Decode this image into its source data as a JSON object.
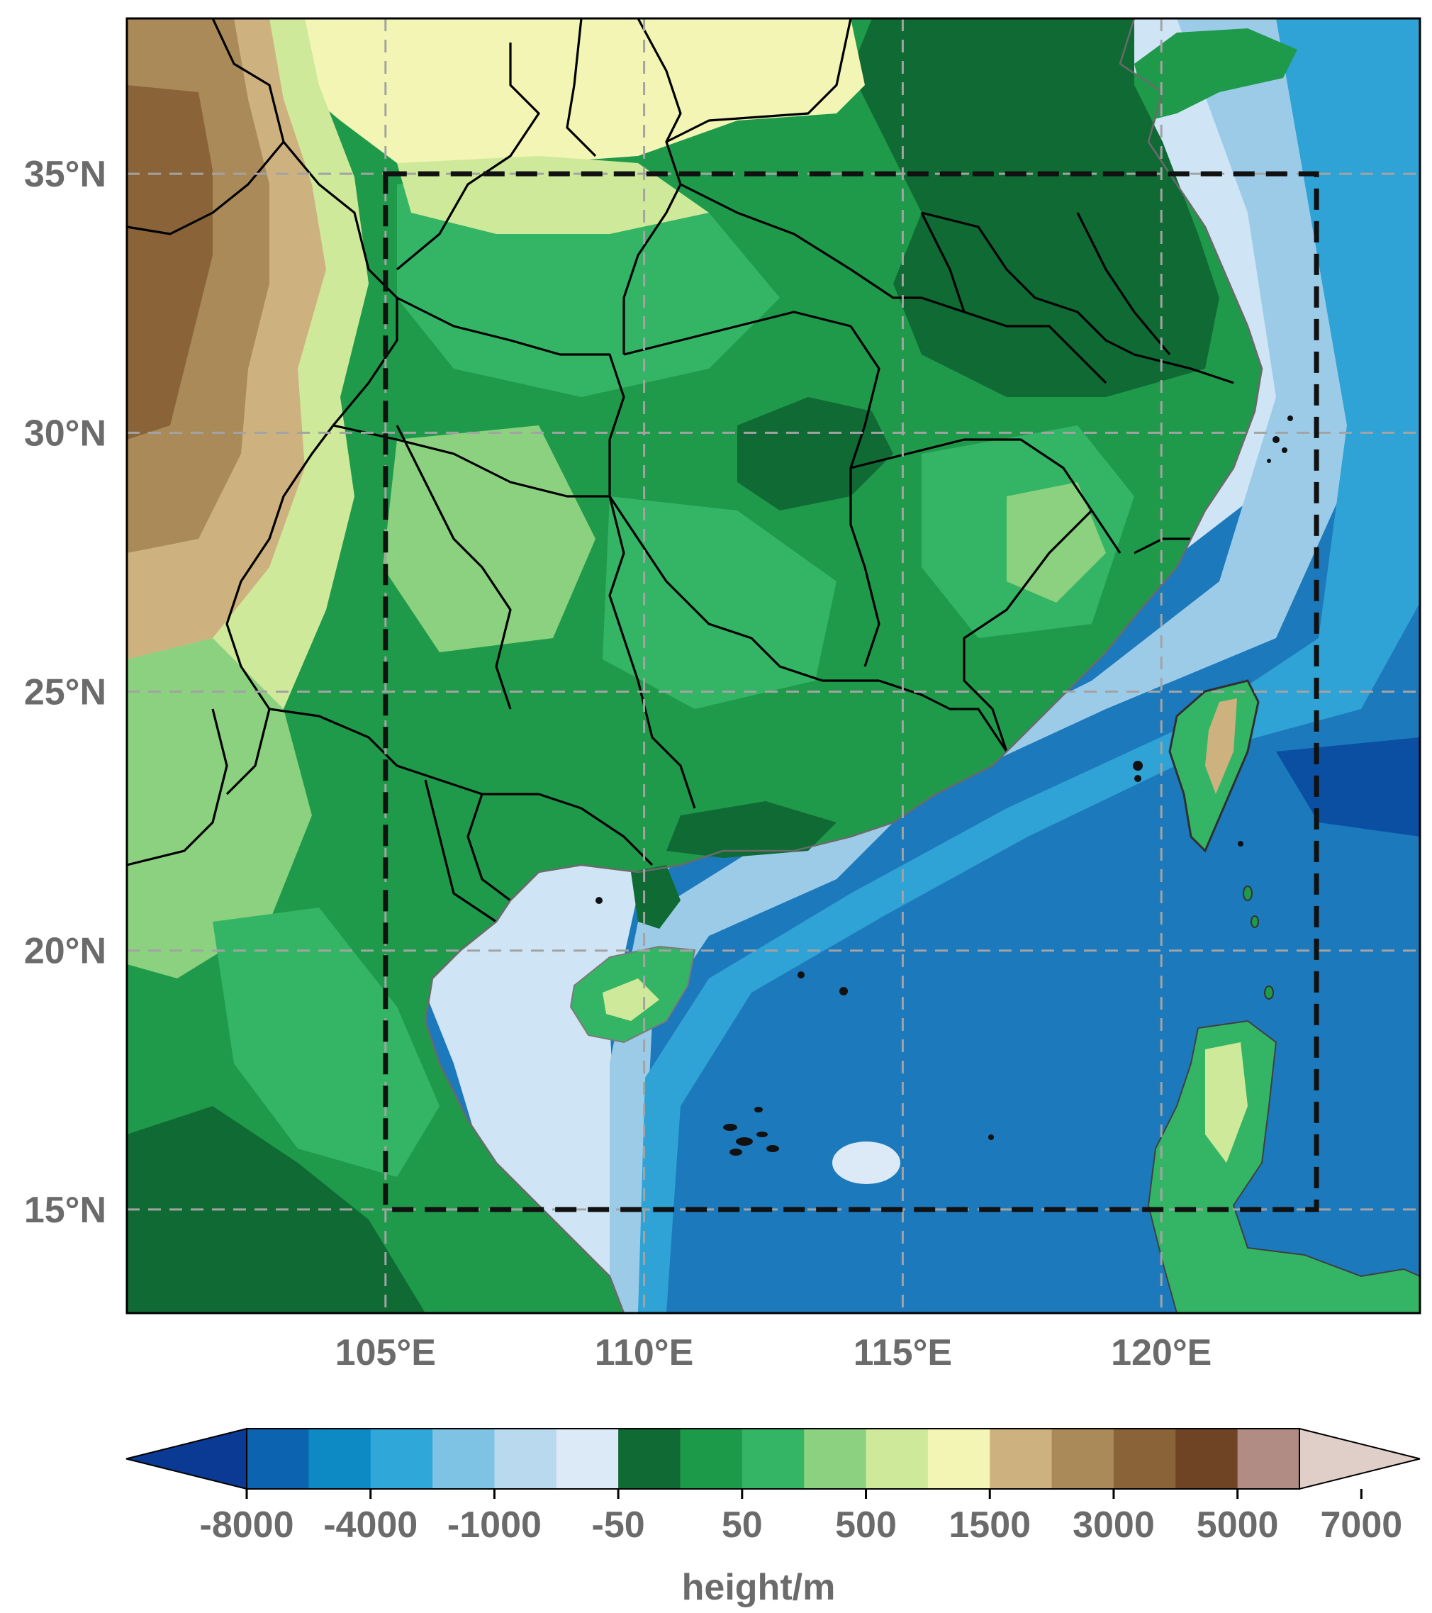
{
  "map": {
    "extent": {
      "lon_min": 100,
      "lon_max": 125,
      "lat_min": 13,
      "lat_max": 38
    },
    "gridlines": true,
    "lon_ticks": [
      {
        "value": 105,
        "label": "105°E"
      },
      {
        "value": 110,
        "label": "110°E"
      },
      {
        "value": 115,
        "label": "115°E"
      },
      {
        "value": 120,
        "label": "120°E"
      }
    ],
    "lat_ticks": [
      {
        "value": 35,
        "label": "35°N"
      },
      {
        "value": 30,
        "label": "30°N"
      },
      {
        "value": 25,
        "label": "25°N"
      },
      {
        "value": 20,
        "label": "20°N"
      },
      {
        "value": 15,
        "label": "15°N"
      }
    ],
    "study_domain": {
      "lon_min": 105,
      "lon_max": 123,
      "lat_min": 15,
      "lat_max": 35
    },
    "colors": {
      "ocean": "#2a8cc6",
      "shelf": "#cfe4f4",
      "lowland": "#1f9a4b",
      "highland": "#8c6a44"
    }
  },
  "colorbar": {
    "label": "height/m",
    "colors": [
      "#0a3a93",
      "#0c63b0",
      "#0d8ac3",
      "#2fa7d8",
      "#7ec3e3",
      "#b8d9ee",
      "#dbeaf6",
      "#0f6a34",
      "#1c9a4a",
      "#34b565",
      "#8bd17f",
      "#cfe99a",
      "#f3f5b4",
      "#cdb27f",
      "#aa8a58",
      "#8a6438",
      "#6e4424",
      "#b08c85",
      "#e0cec8"
    ],
    "tick_labels": [
      "-8000",
      "-4000",
      "-1000",
      "-50",
      "50",
      "500",
      "1500",
      "3000",
      "5000",
      "7000"
    ]
  }
}
